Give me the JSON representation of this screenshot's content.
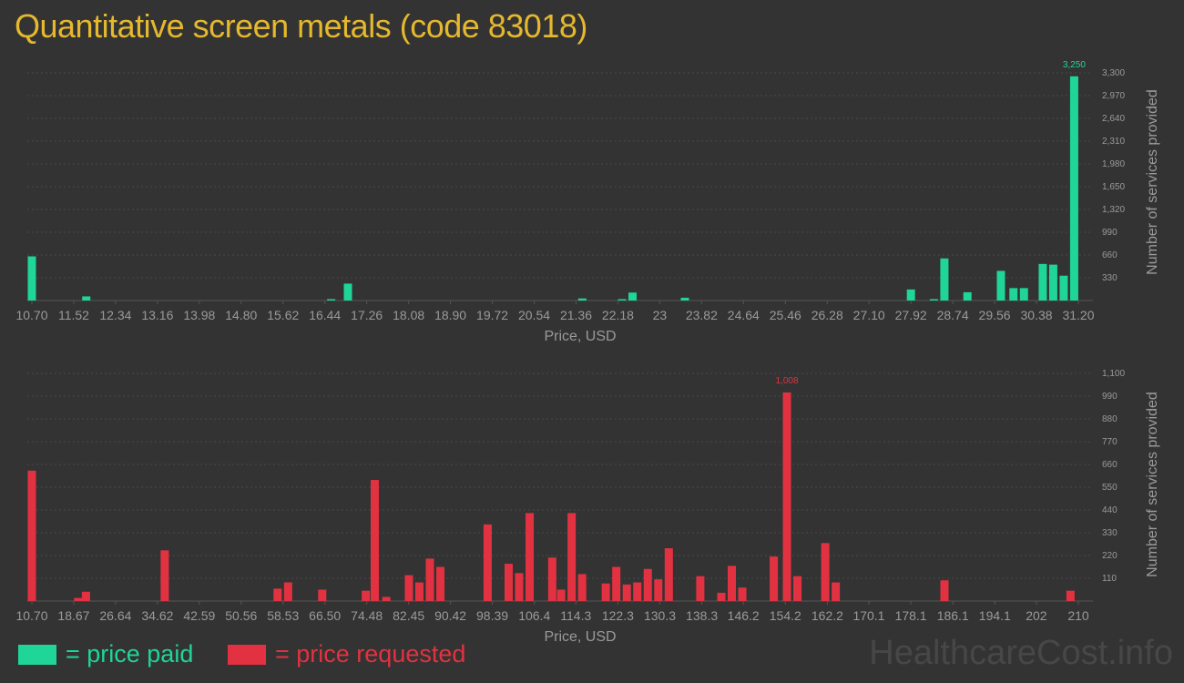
{
  "title": "Quantitative screen metals (code 83018)",
  "legend": {
    "paid": "= price paid",
    "requested": "= price requested"
  },
  "watermark": "HealthcareCost.info",
  "colors": {
    "paid": "#1fd598",
    "requested": "#e23241",
    "title": "#e5b82d",
    "background": "#333333"
  },
  "chart_data": [
    {
      "type": "bar",
      "series_name": "price paid",
      "xlabel": "Price, USD",
      "ylabel": "Number of services provided",
      "x_ticks": [
        "10.70",
        "11.52",
        "12.34",
        "13.16",
        "13.98",
        "14.80",
        "15.62",
        "16.44",
        "17.26",
        "18.08",
        "18.90",
        "19.72",
        "20.54",
        "21.36",
        "22.18",
        "23",
        "23.82",
        "24.64",
        "25.46",
        "26.28",
        "27.10",
        "27.92",
        "28.74",
        "29.56",
        "30.38",
        "31.20"
      ],
      "x_tick_pos": [
        0,
        1,
        2,
        3,
        4,
        5,
        6,
        7,
        8,
        9,
        10,
        11,
        12,
        13,
        14,
        15,
        16,
        17,
        18,
        19,
        20,
        21,
        22,
        23,
        24,
        25
      ],
      "y_ticks": [
        "330",
        "660",
        "990",
        "1,320",
        "1,650",
        "1,980",
        "2,310",
        "2,640",
        "2,970",
        "3,300"
      ],
      "ylim": [
        0,
        3300
      ],
      "x_span": [
        0,
        25
      ],
      "max_label": "3,250",
      "bars": [
        {
          "x": 0,
          "y": 640
        },
        {
          "x": 1.3,
          "y": 60
        },
        {
          "x": 7.15,
          "y": 20
        },
        {
          "x": 7.55,
          "y": 245
        },
        {
          "x": 13.15,
          "y": 30
        },
        {
          "x": 14.1,
          "y": 15
        },
        {
          "x": 14.35,
          "y": 115
        },
        {
          "x": 15.6,
          "y": 40
        },
        {
          "x": 21.0,
          "y": 160
        },
        {
          "x": 21.55,
          "y": 20
        },
        {
          "x": 21.8,
          "y": 610
        },
        {
          "x": 22.35,
          "y": 120
        },
        {
          "x": 23.15,
          "y": 430
        },
        {
          "x": 23.45,
          "y": 180
        },
        {
          "x": 23.7,
          "y": 180
        },
        {
          "x": 24.15,
          "y": 530
        },
        {
          "x": 24.4,
          "y": 520
        },
        {
          "x": 24.65,
          "y": 360
        },
        {
          "x": 24.9,
          "y": 3250
        }
      ]
    },
    {
      "type": "bar",
      "series_name": "price requested",
      "xlabel": "Price, USD",
      "ylabel": "Number of services provided",
      "x_ticks": [
        "10.70",
        "18.67",
        "26.64",
        "34.62",
        "42.59",
        "50.56",
        "58.53",
        "66.50",
        "74.48",
        "82.45",
        "90.42",
        "98.39",
        "106.4",
        "114.3",
        "122.3",
        "130.3",
        "138.3",
        "146.2",
        "154.2",
        "162.2",
        "170.1",
        "178.1",
        "186.1",
        "194.1",
        "202",
        "210"
      ],
      "x_tick_pos": [
        10.7,
        18.67,
        26.64,
        34.62,
        42.59,
        50.56,
        58.53,
        66.5,
        74.48,
        82.45,
        90.42,
        98.39,
        106.4,
        114.3,
        122.3,
        130.3,
        138.3,
        146.2,
        154.2,
        162.2,
        170.1,
        178.1,
        186.1,
        194.1,
        202,
        210
      ],
      "y_ticks": [
        "110",
        "220",
        "330",
        "440",
        "550",
        "660",
        "770",
        "880",
        "990",
        "1,100"
      ],
      "ylim": [
        0,
        1100
      ],
      "x_span": [
        10.7,
        210
      ],
      "max_label": "1,008",
      "bars": [
        {
          "x": 10.7,
          "y": 630
        },
        {
          "x": 19.5,
          "y": 15
        },
        {
          "x": 21.0,
          "y": 45
        },
        {
          "x": 36.0,
          "y": 245
        },
        {
          "x": 57.5,
          "y": 60
        },
        {
          "x": 59.5,
          "y": 90
        },
        {
          "x": 66.0,
          "y": 55
        },
        {
          "x": 74.3,
          "y": 50
        },
        {
          "x": 76.0,
          "y": 585
        },
        {
          "x": 78.2,
          "y": 20
        },
        {
          "x": 82.5,
          "y": 125
        },
        {
          "x": 84.5,
          "y": 90
        },
        {
          "x": 86.5,
          "y": 205
        },
        {
          "x": 88.5,
          "y": 165
        },
        {
          "x": 97.5,
          "y": 370
        },
        {
          "x": 101.5,
          "y": 180
        },
        {
          "x": 103.5,
          "y": 135
        },
        {
          "x": 105.5,
          "y": 425
        },
        {
          "x": 109.8,
          "y": 210
        },
        {
          "x": 111.5,
          "y": 55
        },
        {
          "x": 113.5,
          "y": 425
        },
        {
          "x": 115.5,
          "y": 130
        },
        {
          "x": 120.0,
          "y": 85
        },
        {
          "x": 122.0,
          "y": 165
        },
        {
          "x": 124.0,
          "y": 80
        },
        {
          "x": 126.0,
          "y": 90
        },
        {
          "x": 128.0,
          "y": 155
        },
        {
          "x": 130.0,
          "y": 105
        },
        {
          "x": 132.0,
          "y": 255
        },
        {
          "x": 138.0,
          "y": 120
        },
        {
          "x": 142.0,
          "y": 40
        },
        {
          "x": 144.0,
          "y": 170
        },
        {
          "x": 146.0,
          "y": 65
        },
        {
          "x": 152.0,
          "y": 215
        },
        {
          "x": 154.5,
          "y": 1008
        },
        {
          "x": 156.5,
          "y": 120
        },
        {
          "x": 161.8,
          "y": 280
        },
        {
          "x": 163.8,
          "y": 90
        },
        {
          "x": 184.5,
          "y": 100
        },
        {
          "x": 208.5,
          "y": 50
        }
      ]
    }
  ]
}
